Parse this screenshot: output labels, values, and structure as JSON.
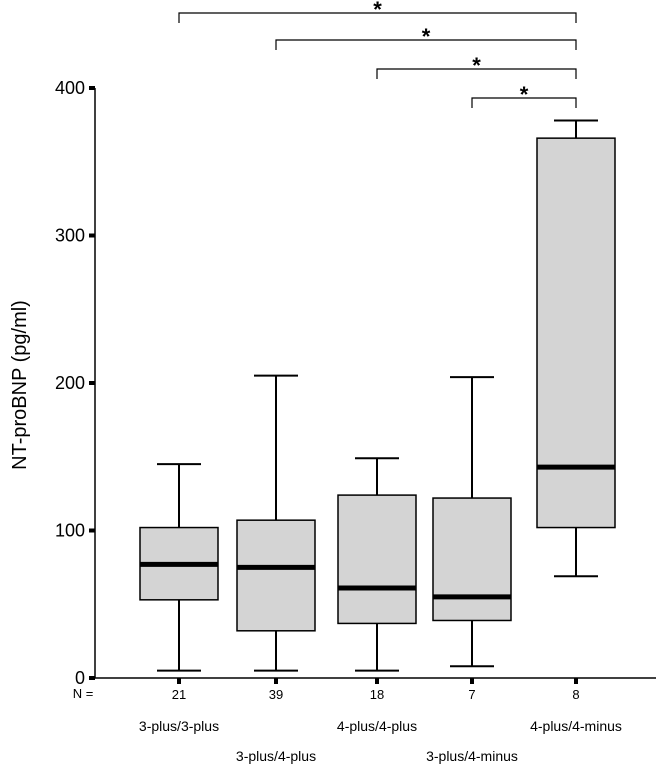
{
  "chart_data": {
    "type": "box",
    "ylabel": "NT-proBNP (pg/ml)",
    "ylim": [
      0,
      400
    ],
    "yticks": [
      0,
      100,
      200,
      300,
      400
    ],
    "n_label": "N =",
    "categories": [
      "3-plus/3-plus",
      "3-plus/4-plus",
      "4-plus/4-plus",
      "3-plus/4-minus",
      "4-plus/4-minus"
    ],
    "n": [
      "21",
      "39",
      "18",
      "7",
      "8"
    ],
    "boxes": [
      {
        "whisker_low": 5,
        "q1": 53,
        "median": 77,
        "q3": 102,
        "whisker_high": 145
      },
      {
        "whisker_low": 5,
        "q1": 32,
        "median": 75,
        "q3": 107,
        "whisker_high": 205
      },
      {
        "whisker_low": 5,
        "q1": 37,
        "median": 61,
        "q3": 124,
        "whisker_high": 149
      },
      {
        "whisker_low": 8,
        "q1": 39,
        "median": 55,
        "q3": 122,
        "whisker_high": 204
      },
      {
        "whisker_low": 69,
        "q1": 102,
        "median": 143,
        "q3": 366,
        "whisker_high": 378
      }
    ],
    "significance": [
      {
        "from": 0,
        "to": 4,
        "label": "*"
      },
      {
        "from": 1,
        "to": 4,
        "label": "*"
      },
      {
        "from": 2,
        "to": 4,
        "label": "*"
      },
      {
        "from": 3,
        "to": 4,
        "label": "*"
      }
    ],
    "colors": {
      "box_fill": "#d4d4d4",
      "line": "#000000"
    }
  }
}
